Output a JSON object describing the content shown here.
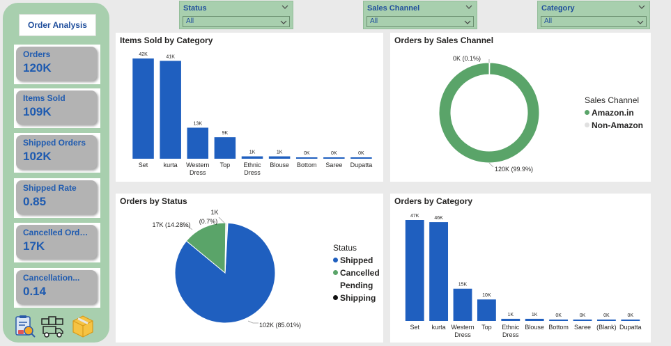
{
  "sidebar": {
    "title": "Order Analysis",
    "kpis": [
      {
        "label": "Orders",
        "value": "120K"
      },
      {
        "label": "Items Sold",
        "value": "109K"
      },
      {
        "label": "Shipped Orders",
        "value": "102K"
      },
      {
        "label": "Shipped Rate",
        "value": "0.85"
      },
      {
        "label": "Cancelled Orders",
        "value": "17K"
      },
      {
        "label": "Cancellation...",
        "value": "0.14"
      }
    ],
    "icons": [
      "report-icon",
      "delivery-truck-icon",
      "package-box-icon"
    ]
  },
  "filters": [
    {
      "title": "Status",
      "value": "All"
    },
    {
      "title": "Sales Channel",
      "value": "All"
    },
    {
      "title": "Category",
      "value": "All"
    }
  ],
  "colors": {
    "blue": "#1f5fbf",
    "green": "#5aa469",
    "light": "#e8e8e8",
    "sidebar": "#a8cfae"
  },
  "panels": {
    "items_by_category": {
      "title": "Items Sold by Category"
    },
    "orders_by_channel": {
      "title": "Orders by Sales Channel",
      "legend_title": "Sales Channel"
    },
    "orders_by_status": {
      "title": "Orders by Status",
      "legend_title": "Status"
    },
    "orders_by_category": {
      "title": "Orders by Category"
    }
  },
  "chart_data": [
    {
      "type": "bar",
      "title": "Items Sold by Category",
      "categories": [
        "Set",
        "kurta",
        "Western Dress",
        "Top",
        "Ethnic Dress",
        "Blouse",
        "Bottom",
        "Saree",
        "Dupatta"
      ],
      "values": [
        42000,
        41000,
        13000,
        9000,
        1000,
        1000,
        0,
        0,
        0
      ],
      "data_labels": [
        "42K",
        "41K",
        "13K",
        "9K",
        "1K",
        "1K",
        "0K",
        "0K",
        "0K"
      ],
      "color": "#1f5fbf"
    },
    {
      "type": "pie",
      "donut": true,
      "title": "Orders by Sales Channel",
      "legend_title": "Sales Channel",
      "categories": [
        "Amazon.in",
        "Non-Amazon"
      ],
      "values": [
        120000,
        100
      ],
      "data_labels": [
        "120K (99.9%)",
        "0K (0.1%)"
      ],
      "colors": [
        "#5aa469",
        "#e0e0e0"
      ],
      "legend_position": "right"
    },
    {
      "type": "pie",
      "title": "Orders by Status",
      "legend_title": "Status",
      "categories": [
        "Shipped",
        "Cancelled",
        "Pending",
        "Shipping"
      ],
      "values": [
        102000,
        17000,
        600,
        10
      ],
      "data_labels": [
        "102K (85.01%)",
        "17K (14.28%)",
        "1K (0.7%)",
        ""
      ],
      "colors": [
        "#1f5fbf",
        "#5aa469",
        "#e0e0e0",
        "#111111"
      ],
      "legend_position": "right"
    },
    {
      "type": "bar",
      "title": "Orders by Category",
      "categories": [
        "Set",
        "kurta",
        "Western Dress",
        "Top",
        "Ethnic Dress",
        "Blouse",
        "Bottom",
        "Saree",
        "(Blank)",
        "Dupatta"
      ],
      "values": [
        47000,
        46000,
        15000,
        10000,
        1000,
        1000,
        0,
        0,
        0,
        0
      ],
      "data_labels": [
        "47K",
        "46K",
        "15K",
        "10K",
        "1K",
        "1K",
        "0K",
        "0K",
        "0K",
        "0K"
      ],
      "color": "#1f5fbf"
    }
  ]
}
